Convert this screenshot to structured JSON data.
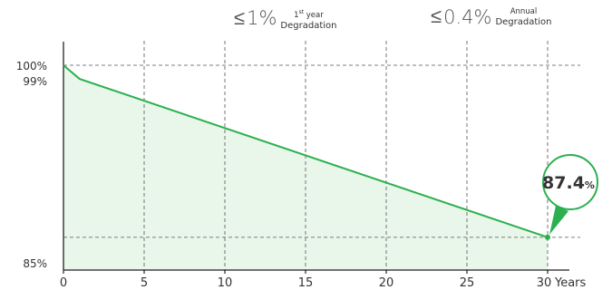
{
  "header": {
    "first": {
      "symbol": "≤",
      "value": "1%",
      "sup": "st",
      "label_line1_pre": "1",
      "label_line1_post": "year",
      "label_line2": "Degradation"
    },
    "annual": {
      "symbol": "≤",
      "value": "0.4%",
      "label_line1": "Annual",
      "label_line2": "Degradation"
    }
  },
  "colors": {
    "line": "#2cb04f",
    "fill": "#e9f6ea",
    "grid": "#555555",
    "axis": "#222222"
  },
  "chart_data": {
    "type": "line",
    "x": [
      0,
      1,
      30
    ],
    "values": [
      100,
      99,
      87.4
    ],
    "xlim": [
      0,
      31.5
    ],
    "ylim": [
      85,
      100
    ],
    "x_ticks": [
      0,
      5,
      10,
      15,
      20,
      25,
      30
    ],
    "x_tick_labels": [
      "0",
      "5",
      "10",
      "15",
      "20",
      "25",
      "30"
    ],
    "xlabel": "Years",
    "y_tick_labels": [
      {
        "value": 100,
        "label": "100%"
      },
      {
        "value": 99,
        "label": "99%"
      },
      {
        "value": 85,
        "label": "85%"
      }
    ],
    "reference_lines": [
      100,
      87.4
    ],
    "grid": "vertical dashed at x ticks",
    "callout": {
      "value": "87.4",
      "unit": "%",
      "x": 30
    }
  }
}
